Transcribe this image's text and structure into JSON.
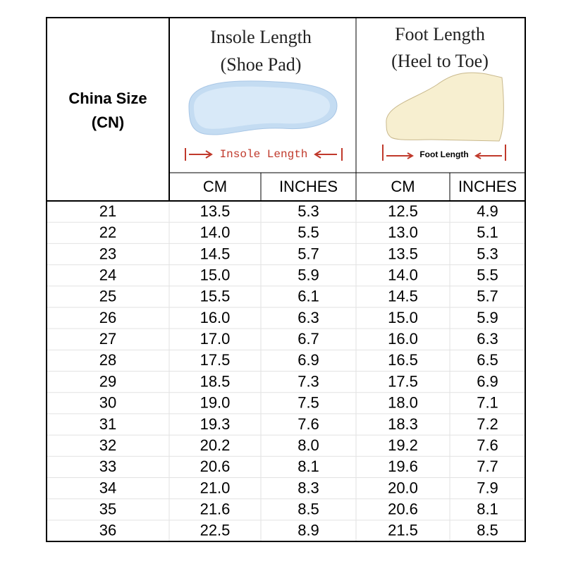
{
  "header": {
    "size_label": [
      "China Size",
      "(CN)"
    ],
    "insole": {
      "title": [
        "Insole Length",
        "(Shoe Pad)"
      ],
      "caption": "Insole Length"
    },
    "foot": {
      "title": [
        "Foot Length",
        "(Heel to Toe)"
      ],
      "caption": "Foot Length"
    },
    "units": [
      "CM",
      "INCHES",
      "CM",
      "INCHES"
    ]
  },
  "table": {
    "rows": [
      [
        "21",
        "13.5",
        "5.3",
        "12.5",
        "4.9"
      ],
      [
        "22",
        "14.0",
        "5.5",
        "13.0",
        "5.1"
      ],
      [
        "23",
        "14.5",
        "5.7",
        "13.5",
        "5.3"
      ],
      [
        "24",
        "15.0",
        "5.9",
        "14.0",
        "5.5"
      ],
      [
        "25",
        "15.5",
        "6.1",
        "14.5",
        "5.7"
      ],
      [
        "26",
        "16.0",
        "6.3",
        "15.0",
        "5.9"
      ],
      [
        "27",
        "17.0",
        "6.7",
        "16.0",
        "6.3"
      ],
      [
        "28",
        "17.5",
        "6.9",
        "16.5",
        "6.5"
      ],
      [
        "29",
        "18.5",
        "7.3",
        "17.5",
        "6.9"
      ],
      [
        "30",
        "19.0",
        "7.5",
        "18.0",
        "7.1"
      ],
      [
        "31",
        "19.3",
        "7.6",
        "18.3",
        "7.2"
      ],
      [
        "32",
        "20.2",
        "8.0",
        "19.2",
        "7.6"
      ],
      [
        "33",
        "20.6",
        "8.1",
        "19.6",
        "7.7"
      ],
      [
        "34",
        "21.0",
        "8.3",
        "20.0",
        "7.9"
      ],
      [
        "35",
        "21.6",
        "8.5",
        "20.6",
        "8.1"
      ],
      [
        "36",
        "22.5",
        "8.9",
        "21.5",
        "8.5"
      ]
    ]
  }
}
